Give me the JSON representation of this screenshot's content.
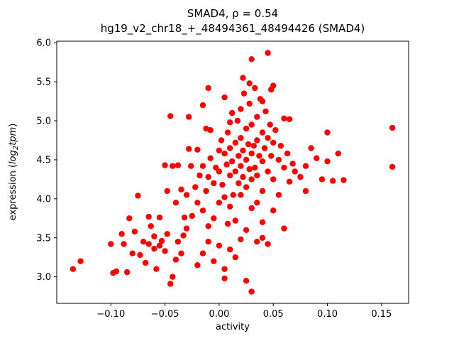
{
  "chart_data": {
    "type": "scatter",
    "title": "SMAD4, ρ = 0.54",
    "subtitle": "hg19_v2_chr18_+_48494361_48494426 (SMAD4)",
    "xlabel": "activity",
    "ylabel": "expression (log₂tpm)",
    "ylabel_parts": {
      "prefix": "expression (",
      "math": "log",
      "sub": "2",
      "suffix": "tpm",
      "close": ")"
    },
    "rho": "0.54",
    "marker_color": "#ff0000",
    "grid": false,
    "legend": "none",
    "xlim": [
      -0.15,
      0.175
    ],
    "ylim": [
      2.66,
      6.02
    ],
    "xticks": [
      -0.1,
      -0.05,
      0.0,
      0.05,
      0.1,
      0.15
    ],
    "xtick_labels": [
      "−0.10",
      "−0.05",
      "0.00",
      "0.05",
      "0.10",
      "0.15"
    ],
    "yticks": [
      3.0,
      3.5,
      4.0,
      4.5,
      5.0,
      5.5,
      6.0
    ],
    "ytick_labels": [
      "3.0",
      "3.5",
      "4.0",
      "4.5",
      "5.0",
      "5.5",
      "6.0"
    ],
    "points": [
      [
        -0.135,
        3.1
      ],
      [
        -0.128,
        3.2
      ],
      [
        -0.1,
        3.42
      ],
      [
        -0.098,
        3.05
      ],
      [
        -0.095,
        3.07
      ],
      [
        -0.09,
        3.55
      ],
      [
        -0.088,
        3.42
      ],
      [
        -0.085,
        3.06
      ],
      [
        -0.083,
        3.75
      ],
      [
        -0.08,
        3.3
      ],
      [
        -0.078,
        3.58
      ],
      [
        -0.075,
        4.04
      ],
      [
        -0.073,
        3.28
      ],
      [
        -0.07,
        3.45
      ],
      [
        -0.068,
        3.18
      ],
      [
        -0.065,
        3.42
      ],
      [
        -0.063,
        3.65
      ],
      [
        -0.06,
        3.36
      ],
      [
        -0.058,
        3.1
      ],
      [
        -0.055,
        3.4
      ],
      [
        -0.053,
        3.46
      ],
      [
        -0.05,
        3.33
      ],
      [
        -0.048,
        3.55
      ],
      [
        -0.045,
        2.91
      ],
      [
        -0.043,
        3.0
      ],
      [
        -0.04,
        3.22
      ],
      [
        -0.038,
        3.45
      ],
      [
        -0.035,
        3.3
      ],
      [
        -0.033,
        3.53
      ],
      [
        -0.03,
        3.62
      ],
      [
        -0.065,
        3.77
      ],
      [
        -0.06,
        3.52
      ],
      [
        -0.055,
        3.76
      ],
      [
        -0.05,
        4.43
      ],
      [
        -0.048,
        4.1
      ],
      [
        -0.045,
        5.06
      ],
      [
        -0.043,
        4.42
      ],
      [
        -0.04,
        3.95
      ],
      [
        -0.038,
        4.43
      ],
      [
        -0.035,
        4.12
      ],
      [
        -0.032,
        3.76
      ],
      [
        -0.03,
        4.05
      ],
      [
        -0.028,
        4.64
      ],
      [
        -0.026,
        4.42
      ],
      [
        -0.025,
        3.78
      ],
      [
        -0.022,
        4.15
      ],
      [
        -0.02,
        4.63
      ],
      [
        -0.02,
        3.95
      ],
      [
        -0.018,
        4.3
      ],
      [
        -0.015,
        4.42
      ],
      [
        -0.015,
        3.85
      ],
      [
        -0.012,
        4.1
      ],
      [
        -0.01,
        4.28
      ],
      [
        -0.01,
        3.65
      ],
      [
        -0.008,
        4.52
      ],
      [
        -0.005,
        4.2
      ],
      [
        -0.005,
        3.75
      ],
      [
        -0.003,
        4.4
      ],
      [
        -0.028,
        5.05
      ],
      [
        -0.01,
        5.42
      ],
      [
        -0.012,
        4.9
      ],
      [
        -0.008,
        4.88
      ],
      [
        0.0,
        4.62
      ],
      [
        0.0,
        4.35
      ],
      [
        0.0,
        3.95
      ],
      [
        0.002,
        4.75
      ],
      [
        0.003,
        4.18
      ],
      [
        0.005,
        4.58
      ],
      [
        0.005,
        4.02
      ],
      [
        0.007,
        4.44
      ],
      [
        0.008,
        4.85
      ],
      [
        0.008,
        3.68
      ],
      [
        0.01,
        4.65
      ],
      [
        0.01,
        4.3
      ],
      [
        0.01,
        3.9
      ],
      [
        0.012,
        5.1
      ],
      [
        0.012,
        4.48
      ],
      [
        0.013,
        4.05
      ],
      [
        0.015,
        4.72
      ],
      [
        0.015,
        4.35
      ],
      [
        0.015,
        3.72
      ],
      [
        0.017,
        5.0
      ],
      [
        0.018,
        4.55
      ],
      [
        0.018,
        4.2
      ],
      [
        0.02,
        5.15
      ],
      [
        0.02,
        4.78
      ],
      [
        0.02,
        4.42
      ],
      [
        0.02,
        4.05
      ],
      [
        0.022,
        4.62
      ],
      [
        0.022,
        4.28
      ],
      [
        0.023,
        5.35
      ],
      [
        0.025,
        4.9
      ],
      [
        0.025,
        4.5
      ],
      [
        0.025,
        4.15
      ],
      [
        0.025,
        3.6
      ],
      [
        0.027,
        4.7
      ],
      [
        0.028,
        4.38
      ],
      [
        0.028,
        5.22
      ],
      [
        0.03,
        4.95
      ],
      [
        0.03,
        4.58
      ],
      [
        0.03,
        4.25
      ],
      [
        0.03,
        3.88
      ],
      [
        0.03,
        5.79
      ],
      [
        0.032,
        4.68
      ],
      [
        0.033,
        4.4
      ],
      [
        0.035,
        5.05
      ],
      [
        0.035,
        4.75
      ],
      [
        0.035,
        4.3
      ],
      [
        0.035,
        3.95
      ],
      [
        0.037,
        4.55
      ],
      [
        0.038,
        5.28
      ],
      [
        0.04,
        4.85
      ],
      [
        0.04,
        4.48
      ],
      [
        0.04,
        4.1
      ],
      [
        0.04,
        3.7
      ],
      [
        0.042,
        4.65
      ],
      [
        0.043,
        5.12
      ],
      [
        0.045,
        4.78
      ],
      [
        0.045,
        4.35
      ],
      [
        0.047,
        4.95
      ],
      [
        0.048,
        4.55
      ],
      [
        0.05,
        5.45
      ],
      [
        0.05,
        4.72
      ],
      [
        0.05,
        4.25
      ],
      [
        0.05,
        3.85
      ],
      [
        0.052,
        4.88
      ],
      [
        0.055,
        4.5
      ],
      [
        0.055,
        4.05
      ],
      [
        0.057,
        4.68
      ],
      [
        0.06,
        5.03
      ],
      [
        0.06,
        4.4
      ],
      [
        0.06,
        3.62
      ],
      [
        0.063,
        4.58
      ],
      [
        0.065,
        4.22
      ],
      [
        0.065,
        5.02
      ],
      [
        0.068,
        4.45
      ],
      [
        0.07,
        4.35
      ],
      [
        0.075,
        4.28
      ],
      [
        0.08,
        4.42
      ],
      [
        0.08,
        4.1
      ],
      [
        0.085,
        4.65
      ],
      [
        0.09,
        4.52
      ],
      [
        0.095,
        4.25
      ],
      [
        0.1,
        4.85
      ],
      [
        0.1,
        4.48
      ],
      [
        0.105,
        4.23
      ],
      [
        0.11,
        4.58
      ],
      [
        0.115,
        4.24
      ],
      [
        0.16,
        4.91
      ],
      [
        0.16,
        4.41
      ],
      [
        -0.02,
        3.15
      ],
      [
        -0.015,
        3.3
      ],
      [
        -0.01,
        3.45
      ],
      [
        -0.005,
        3.2
      ],
      [
        0.0,
        3.4
      ],
      [
        0.005,
        3.1
      ],
      [
        0.01,
        3.35
      ],
      [
        0.015,
        3.25
      ],
      [
        0.02,
        3.48
      ],
      [
        0.025,
        2.95
      ],
      [
        0.03,
        2.81
      ],
      [
        0.035,
        3.45
      ],
      [
        0.04,
        3.5
      ],
      [
        0.045,
        3.42
      ],
      [
        0.005,
        2.98
      ],
      [
        -0.015,
        5.2
      ],
      [
        0.005,
        5.3
      ],
      [
        0.01,
        4.98
      ],
      [
        0.022,
        5.55
      ],
      [
        0.028,
        5.48
      ],
      [
        0.033,
        5.42
      ],
      [
        0.045,
        5.87
      ],
      [
        0.048,
        5.4
      ],
      [
        0.04,
        5.25
      ]
    ]
  }
}
